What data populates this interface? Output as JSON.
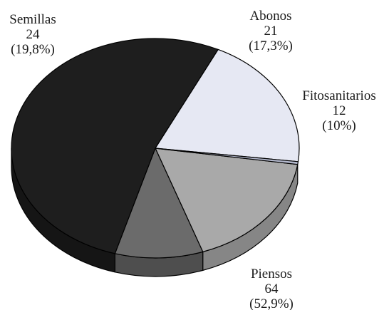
{
  "chart_data": {
    "type": "pie",
    "style": "3d",
    "slices": [
      {
        "label": "Abonos",
        "value": 21,
        "percent": "(17,3%)",
        "color": "#a9a9a9",
        "side_color": "#868686"
      },
      {
        "label": "Fitosanitarios",
        "value": 12,
        "percent": "(10%)",
        "color": "#6b6b6b",
        "side_color": "#4e4e4e"
      },
      {
        "label": "Piensos",
        "value": 64,
        "percent": "(52,9%)",
        "color": "#1e1e1e",
        "side_color": "#151515"
      },
      {
        "label": "Semillas",
        "value": 24,
        "percent": "(19,8%)",
        "color": "#e6e8f3",
        "side_color": "#b9bccc"
      },
      {
        "label": "",
        "value": 0.5,
        "percent": "",
        "color": "#b3b8cc",
        "side_color": "#8f94aa"
      }
    ]
  }
}
